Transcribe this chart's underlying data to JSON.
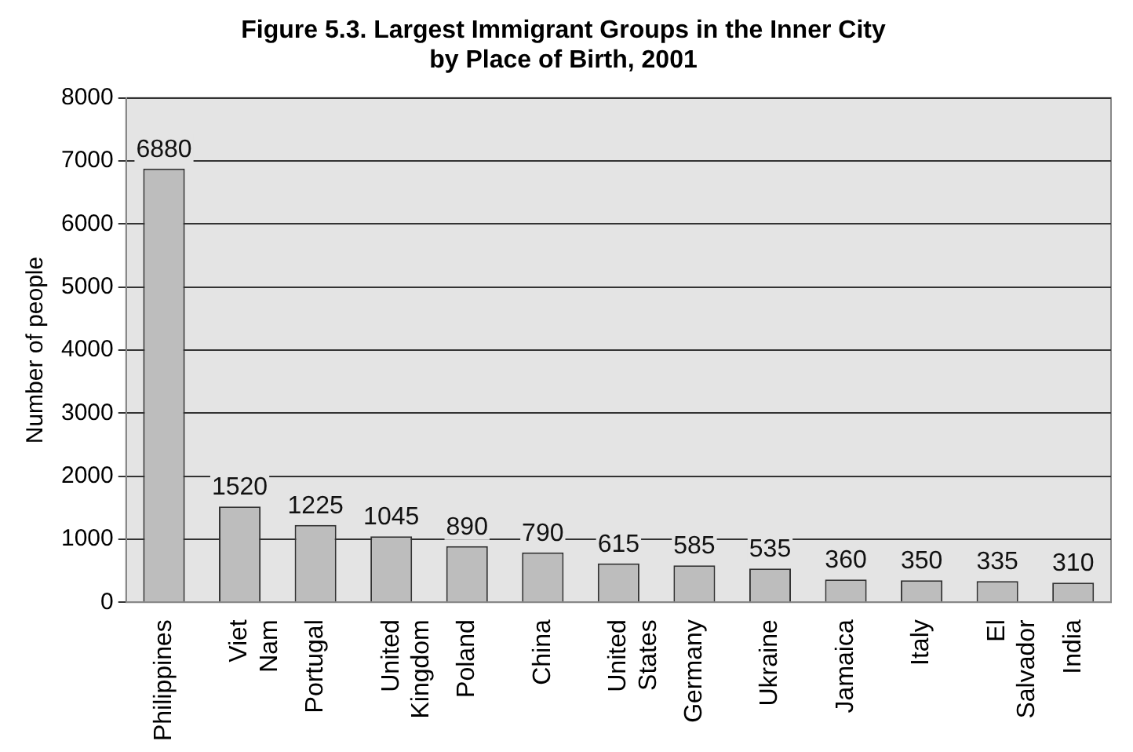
{
  "chart_data": {
    "type": "bar",
    "title": "Figure 5.3. Largest Immigrant Groups in the Inner City\nby Place of Birth, 2001",
    "ylabel": "Number of people",
    "categories": [
      "Philippines",
      "Viet Nam",
      "Portugal",
      "United Kingdom",
      "Poland",
      "China",
      "United States",
      "Germany",
      "Ukraine",
      "Jamaica",
      "Italy",
      "El Salvador",
      "India"
    ],
    "values": [
      6880,
      1520,
      1225,
      1045,
      890,
      790,
      615,
      585,
      535,
      360,
      350,
      335,
      310
    ],
    "color": "#bdbdbd",
    "ylim": [
      0,
      8000
    ],
    "yticks": [
      0,
      1000,
      2000,
      3000,
      4000,
      5000,
      6000,
      7000,
      8000
    ],
    "grid": "y",
    "data_labels": true,
    "legend": false
  }
}
